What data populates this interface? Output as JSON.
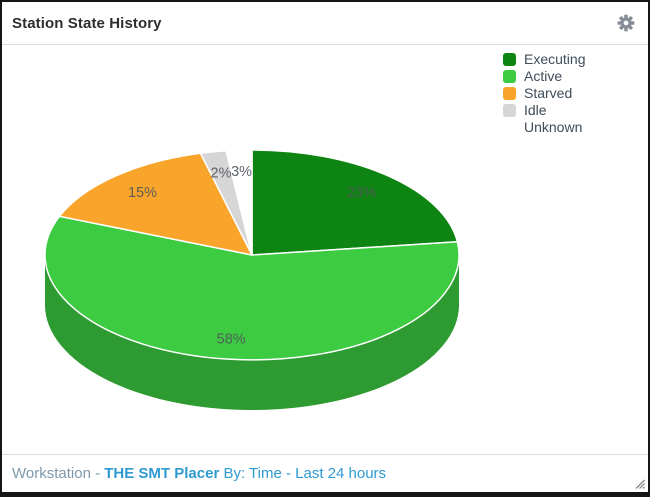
{
  "header": {
    "title": "Station State History"
  },
  "icons": {
    "settings": "gear",
    "resize": "diagonal-grip"
  },
  "colors": {
    "executing_green": "#0E8412",
    "active_green": "#3DCB42",
    "starved_orange": "#F9A42B",
    "idle_gray": "#D6D6D6",
    "unknown_white": "#FFFFFF",
    "pie_label_text": "#50555B",
    "legend_text": "#3F4C5A",
    "footer_blue": "#2E9AD1",
    "footer_gray_blue": "#7D99AC"
  },
  "chart_data": {
    "type": "pie",
    "is3d": true,
    "title": "Station State History",
    "unit": "%",
    "legend_position": "top-right",
    "label_color": "#50555B",
    "slices": [
      {
        "label": "Executing",
        "value": 23,
        "display": "23%",
        "color": "#0E8412"
      },
      {
        "label": "Active",
        "value": 58,
        "display": "58%",
        "color": "#3DCB42"
      },
      {
        "label": "Starved",
        "value": 15,
        "display": "15%",
        "color": "#F9A42B"
      },
      {
        "label": "Idle",
        "value": 2,
        "display": "2%",
        "color": "#D6D6D6"
      },
      {
        "label": "Unknown",
        "value": 3,
        "display": "3%",
        "color": "#FFFFFF"
      }
    ]
  },
  "footer": {
    "prefix": "Workstation - ",
    "station": "THE SMT Placer",
    "by": " By: Time - Last 24 hours"
  }
}
